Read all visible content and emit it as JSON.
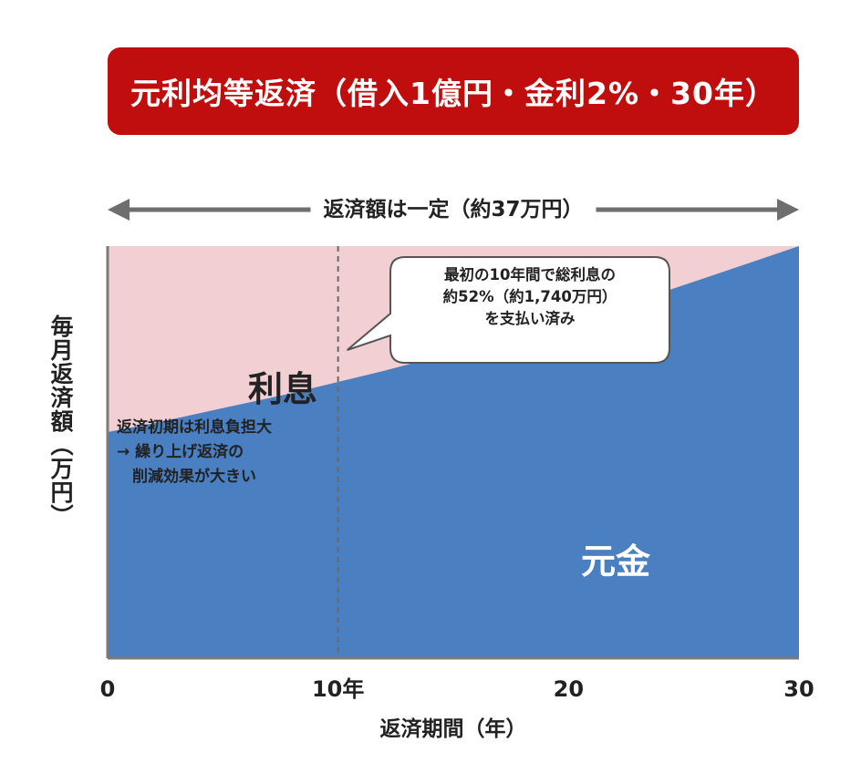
{
  "title": "元利均等返済（借入1億円・金利2%・30年）",
  "payment_note": "返済額は一定（約37万円）",
  "callout": [
    "最初の10年間で総利息の",
    "約52%（約1,740万円）",
    "を支払い済み"
  ],
  "interest_note": [
    "返済初期は利息負担大",
    "→ 繰り上げ返済の",
    "　削減効果が大きい"
  ],
  "colors": {
    "banner": "#c00d0d",
    "interest": "#f2cfd2",
    "principal": "#4a7fc1",
    "arrow": "#6e6e6e",
    "axis": "#7a7a7a"
  },
  "chart_data": {
    "type": "area",
    "title": "元利均等返済（借入1億円・金利2%・30年）",
    "xlabel": "返済期間（年）",
    "ylabel": "毎月返済額（万円）",
    "xlim": [
      0,
      30
    ],
    "ylim": [
      0,
      37
    ],
    "x_ticks": [
      {
        "value": 0,
        "label": "0"
      },
      {
        "value": 10,
        "label": "10年"
      },
      {
        "value": 20,
        "label": "20"
      },
      {
        "value": 30,
        "label": "30"
      }
    ],
    "marker_x": 10,
    "stacked": true,
    "monthly_payment": 37,
    "x": [
      0,
      2,
      4,
      6,
      8,
      10,
      12,
      14,
      16,
      18,
      20,
      22,
      24,
      26,
      28,
      30
    ],
    "series": [
      {
        "name": "元金",
        "values": [
          20.3,
          21.1,
          22.0,
          22.9,
          23.8,
          24.8,
          25.8,
          26.9,
          28.0,
          29.1,
          30.3,
          31.5,
          32.8,
          34.2,
          35.6,
          37.0
        ]
      },
      {
        "name": "利息",
        "values": [
          16.7,
          15.9,
          15.0,
          14.1,
          13.2,
          12.2,
          11.2,
          10.1,
          9.0,
          7.9,
          6.7,
          5.5,
          4.2,
          2.8,
          1.4,
          0.0
        ]
      }
    ],
    "grid": false,
    "legend": "none"
  }
}
